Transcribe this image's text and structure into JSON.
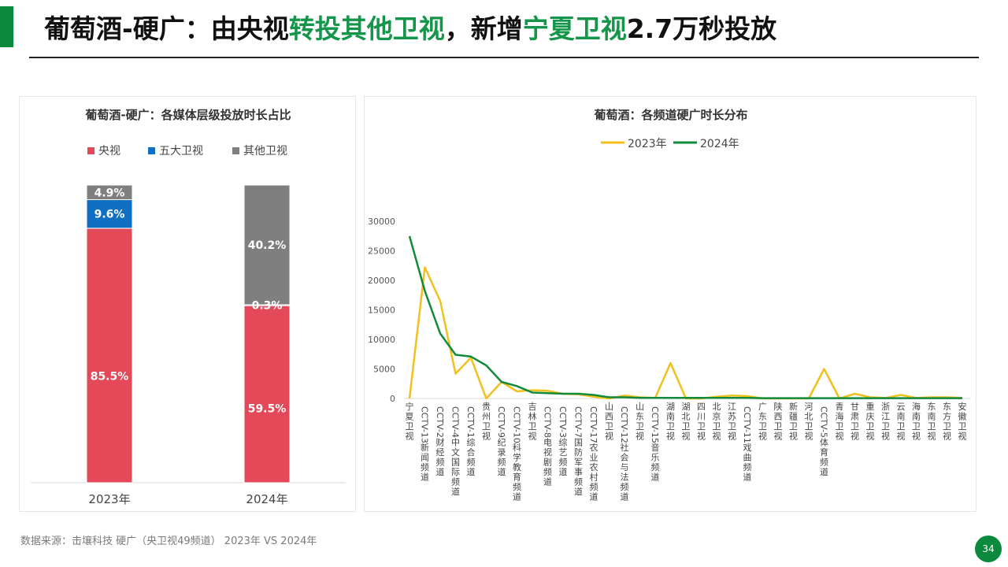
{
  "page": {
    "title_parts": [
      "葡萄酒-硬广：由央视",
      "转投其他卫视",
      "，新增",
      "宁夏卫视",
      "2.7万秒投放"
    ],
    "source": "数据来源：击壤科技  硬广（央卫视49频道） 2023年 VS 2024年",
    "page_number": "34",
    "colors": {
      "accent": "#0b8a3e",
      "highlight": "#14964a"
    }
  },
  "chart_data": [
    {
      "type": "bar",
      "stacked": true,
      "title": "葡萄酒-硬广：各媒体层级投放时长占比",
      "categories": [
        "2023年",
        "2024年"
      ],
      "series": [
        {
          "name": "央视",
          "values": [
            85.5,
            59.5
          ],
          "labels": [
            "85.5%",
            "59.5%"
          ],
          "color": "#e4495a"
        },
        {
          "name": "五大卫视",
          "values": [
            9.6,
            0.3
          ],
          "labels": [
            "9.6%",
            "0.3%"
          ],
          "color": "#0f6fc2"
        },
        {
          "name": "其他卫视",
          "values": [
            4.9,
            40.2
          ],
          "labels": [
            "4.9%",
            "40.2%"
          ],
          "color": "#7f7f7f"
        }
      ],
      "ylim": [
        0,
        100
      ],
      "legend": "top",
      "grid": false
    },
    {
      "type": "line",
      "title": "葡萄酒：各频道硬广时长分布",
      "categories": [
        "宁夏卫视",
        "CCTV-13新闻频道",
        "CCTV-2财经频道",
        "CCTV-4中文国际频道",
        "CCTV-1综合频道",
        "贵州卫视",
        "CCTV-9纪录频道",
        "CCTV-10科学教育频道",
        "吉林卫视",
        "CCTV-8电视剧频道",
        "CCTV-3综艺频道",
        "CCTV-7国防军事频道",
        "CCTV-17农业农村频道",
        "山西卫视",
        "CCTV-12社会与法频道",
        "山东卫视",
        "CCTV-15音乐频道",
        "湖南卫视",
        "湖北卫视",
        "四川卫视",
        "北京卫视",
        "江苏卫视",
        "CCTV-11戏曲频道",
        "广东卫视",
        "陕西卫视",
        "新疆卫视",
        "河北卫视",
        "CCTV-5体育频道",
        "青海卫视",
        "甘肃卫视",
        "重庆卫视",
        "浙江卫视",
        "云南卫视",
        "海南卫视",
        "东南卫视",
        "东方卫视",
        "安徽卫视"
      ],
      "series": [
        {
          "name": "2023年",
          "color": "#f2c01c",
          "values": [
            0,
            22200,
            16500,
            4200,
            6900,
            0,
            2800,
            1200,
            1400,
            1300,
            800,
            700,
            300,
            0,
            500,
            200,
            100,
            6000,
            0,
            0,
            300,
            500,
            400,
            0,
            0,
            0,
            0,
            5000,
            0,
            800,
            200,
            100,
            600,
            100,
            200,
            200,
            100
          ]
        },
        {
          "name": "2024年",
          "color": "#128a3c",
          "values": [
            27500,
            18200,
            11000,
            7400,
            7100,
            5600,
            2800,
            2100,
            1000,
            900,
            800,
            800,
            600,
            200,
            200,
            100,
            100,
            100,
            100,
            100,
            100,
            100,
            100,
            50,
            50,
            50,
            50,
            50,
            50,
            50,
            50,
            50,
            50,
            50,
            50,
            50,
            50
          ]
        }
      ],
      "yticks": [
        0,
        5000,
        10000,
        15000,
        20000,
        25000,
        30000
      ],
      "ylim": [
        0,
        30000
      ],
      "legend": "top",
      "grid": false
    }
  ]
}
